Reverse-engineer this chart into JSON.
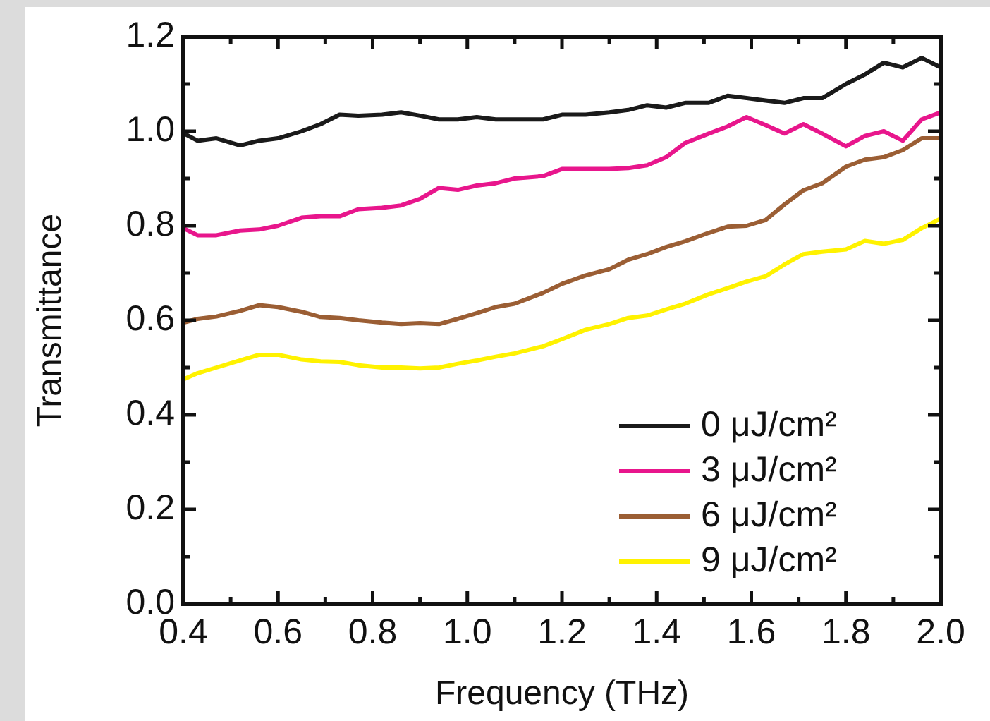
{
  "chart_data": {
    "type": "line",
    "xlabel": "Frequency (THz)",
    "ylabel": "Transmittance",
    "x": [
      0.4,
      0.43,
      0.47,
      0.52,
      0.56,
      0.6,
      0.65,
      0.69,
      0.73,
      0.77,
      0.82,
      0.86,
      0.9,
      0.94,
      0.98,
      1.02,
      1.06,
      1.1,
      1.16,
      1.2,
      1.25,
      1.3,
      1.34,
      1.38,
      1.42,
      1.46,
      1.51,
      1.55,
      1.59,
      1.63,
      1.67,
      1.71,
      1.75,
      1.8,
      1.84,
      1.88,
      1.92,
      1.96,
      2.0
    ],
    "series": [
      {
        "name": "0 μJ/cm²",
        "color": "#1a1a1a",
        "values": [
          0.996,
          0.98,
          0.985,
          0.97,
          0.98,
          0.985,
          1.0,
          1.015,
          1.035,
          1.033,
          1.035,
          1.04,
          1.033,
          1.025,
          1.025,
          1.03,
          1.025,
          1.025,
          1.025,
          1.035,
          1.035,
          1.04,
          1.045,
          1.055,
          1.05,
          1.06,
          1.06,
          1.075,
          1.07,
          1.065,
          1.06,
          1.07,
          1.07,
          1.1,
          1.12,
          1.145,
          1.135,
          1.155,
          1.135
        ]
      },
      {
        "name": "3 μJ/cm²",
        "color": "#e8168c",
        "values": [
          0.795,
          0.78,
          0.78,
          0.79,
          0.792,
          0.8,
          0.817,
          0.82,
          0.82,
          0.835,
          0.838,
          0.843,
          0.857,
          0.88,
          0.876,
          0.885,
          0.89,
          0.9,
          0.905,
          0.92,
          0.92,
          0.92,
          0.922,
          0.928,
          0.945,
          0.975,
          0.995,
          1.01,
          1.03,
          1.013,
          0.995,
          1.015,
          0.995,
          0.968,
          0.99,
          1.0,
          0.98,
          1.025,
          1.04
        ]
      },
      {
        "name": "6 μJ/cm²",
        "color": "#9b5e34",
        "values": [
          0.595,
          0.603,
          0.608,
          0.62,
          0.632,
          0.628,
          0.618,
          0.607,
          0.605,
          0.6,
          0.595,
          0.592,
          0.594,
          0.592,
          0.603,
          0.615,
          0.628,
          0.635,
          0.658,
          0.677,
          0.695,
          0.708,
          0.728,
          0.74,
          0.755,
          0.767,
          0.785,
          0.798,
          0.8,
          0.812,
          0.845,
          0.875,
          0.89,
          0.925,
          0.94,
          0.945,
          0.96,
          0.985,
          0.985
        ]
      },
      {
        "name": "9 μJ/cm²",
        "color": "#fff200",
        "values": [
          0.475,
          0.488,
          0.5,
          0.515,
          0.527,
          0.527,
          0.517,
          0.513,
          0.512,
          0.505,
          0.5,
          0.5,
          0.498,
          0.5,
          0.508,
          0.515,
          0.523,
          0.53,
          0.545,
          0.56,
          0.58,
          0.592,
          0.605,
          0.61,
          0.623,
          0.635,
          0.655,
          0.668,
          0.682,
          0.693,
          0.718,
          0.74,
          0.745,
          0.75,
          0.768,
          0.762,
          0.77,
          0.795,
          0.815
        ]
      }
    ],
    "xlim": [
      0.4,
      2.0
    ],
    "ylim": [
      0.0,
      1.2
    ],
    "xticks": [
      0.4,
      0.6,
      0.8,
      {
        "value": 1.0,
        "label": "1.0"
      },
      1.2,
      1.4,
      1.6,
      1.8,
      {
        "value": 2.0,
        "label": "2.0"
      }
    ],
    "yticks": [
      {
        "value": 0.0,
        "label": "0.0"
      },
      0.2,
      0.4,
      0.6,
      0.8,
      {
        "value": 1.0,
        "label": "1.0"
      },
      1.2
    ],
    "legend": "bottom right",
    "marker": "none",
    "line_style": "solid"
  }
}
